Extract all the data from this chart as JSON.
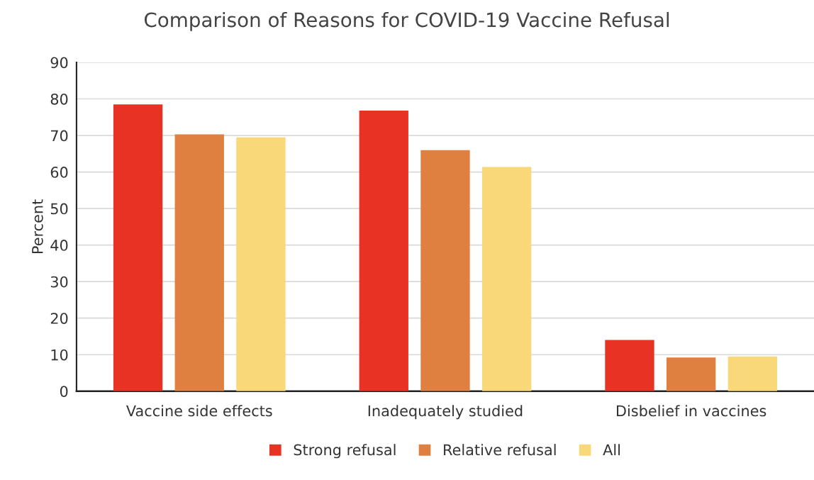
{
  "chart_data": {
    "type": "bar",
    "title": "Comparison of Reasons for COVID-19 Vaccine Refusal",
    "ylabel": "Percent",
    "categories": [
      "Vaccine side effects",
      "Inadequately studied",
      "Disbelief in vaccines"
    ],
    "series": [
      {
        "name": "Strong refusal",
        "color": "#e83324",
        "values": [
          78.5,
          76.8,
          14
        ]
      },
      {
        "name": "Relative refusal",
        "color": "#df7f40",
        "values": [
          70.3,
          66,
          9.2
        ]
      },
      {
        "name": "All",
        "color": "#f8d878",
        "values": [
          69.5,
          61.4,
          9.5
        ]
      }
    ],
    "ylim": [
      0,
      90
    ],
    "yticks": [
      0,
      10,
      20,
      30,
      40,
      50,
      60,
      70,
      80,
      90
    ],
    "grid": "y",
    "legend": "bottom"
  }
}
